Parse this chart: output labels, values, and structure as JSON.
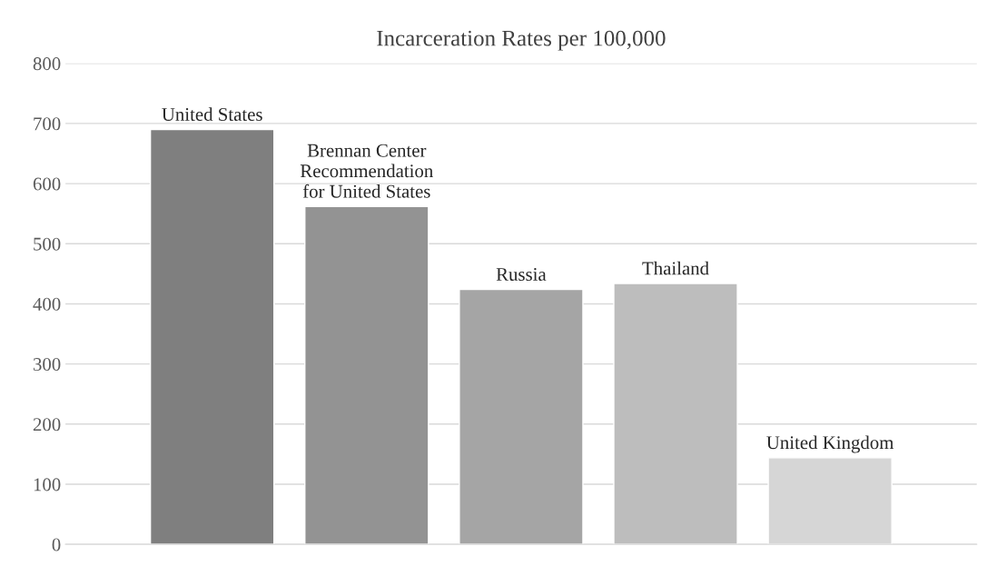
{
  "chart_data": {
    "type": "bar",
    "title": "Incarceration Rates per 100,000",
    "categories": [
      "United States",
      "Brennan Center\nRecommendation\nfor United States",
      "Russia",
      "Thailand",
      "United Kingdom"
    ],
    "values": [
      690,
      562,
      424,
      434,
      144
    ],
    "colors": [
      "#7f7f7f",
      "#939393",
      "#a5a5a5",
      "#bdbdbd",
      "#d6d6d6"
    ],
    "ylim": [
      0,
      800
    ],
    "yticks": [
      0,
      100,
      200,
      300,
      400,
      500,
      600,
      700,
      800
    ],
    "grid": "y",
    "tick_labels": "y"
  }
}
